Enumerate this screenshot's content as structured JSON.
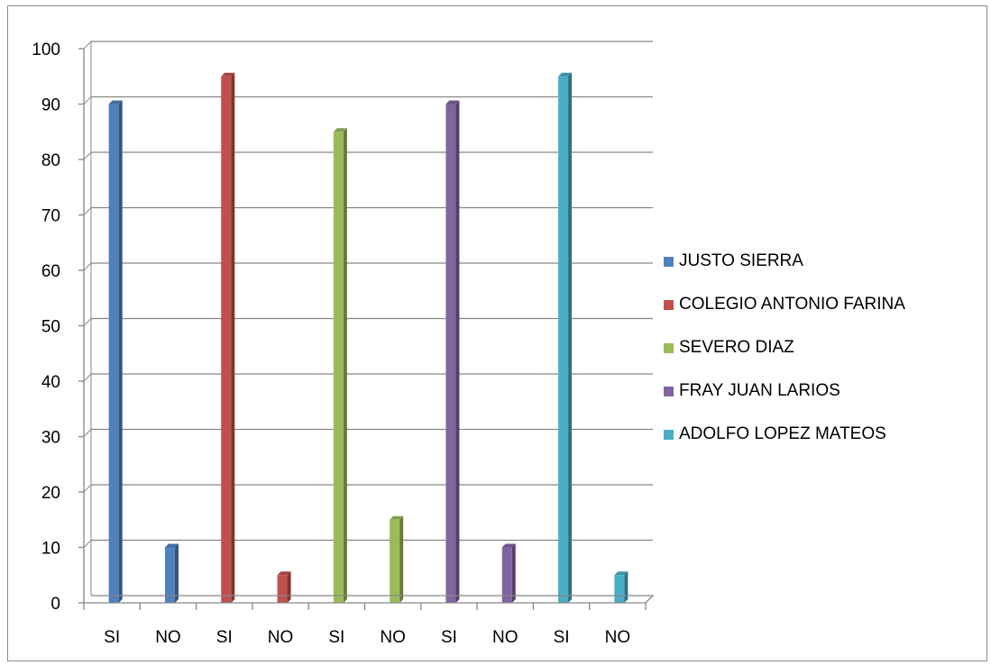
{
  "chart_data": {
    "type": "bar",
    "categories": [
      "SI",
      "NO",
      "SI",
      "NO",
      "SI",
      "NO",
      "SI",
      "NO",
      "SI",
      "NO"
    ],
    "values": [
      90,
      10,
      95,
      5,
      85,
      15,
      90,
      10,
      95,
      5
    ],
    "point_colors": [
      "#4f81bd",
      "#4f81bd",
      "#c0504d",
      "#c0504d",
      "#9bbb59",
      "#9bbb59",
      "#8064a2",
      "#8064a2",
      "#4bacc6",
      "#4bacc6"
    ],
    "ylim": [
      0,
      100
    ],
    "yticks": [
      0,
      10,
      20,
      30,
      40,
      50,
      60,
      70,
      80,
      90,
      100
    ],
    "grid": true,
    "legend_position": "right",
    "legend": [
      {
        "label": "JUSTO SIERRA",
        "color": "#4f81bd"
      },
      {
        "label": "COLEGIO ANTONIO FARINA",
        "color": "#c0504d"
      },
      {
        "label": "SEVERO DIAZ",
        "color": "#9bbb59"
      },
      {
        "label": "FRAY JUAN LARIOS",
        "color": "#8064a2"
      },
      {
        "label": "ADOLFO LOPEZ MATEOS",
        "color": "#4bacc6"
      }
    ],
    "title": "",
    "xlabel": "",
    "ylabel": ""
  }
}
